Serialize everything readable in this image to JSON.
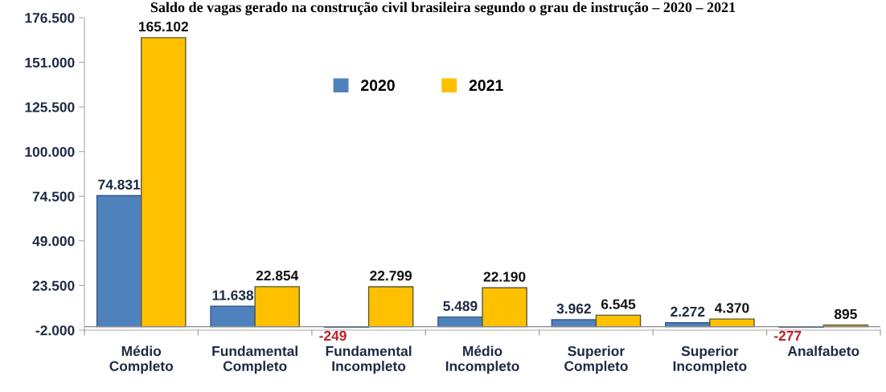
{
  "chart_data": {
    "type": "bar",
    "title": "Saldo de vagas gerado na construção civil brasileira segundo o grau de instrução – 2020 – 2021",
    "categories": [
      "Médio\nCompleto",
      "Fundamental\nCompleto",
      "Fundamental\nIncompleto",
      "Médio\nIncompleto",
      "Superior\nCompleto",
      "Superior\nIncompleto",
      "Analfabeto"
    ],
    "series": [
      {
        "name": "2020",
        "color": "#4f81bd",
        "values": [
          74831,
          11638,
          -249,
          5489,
          3962,
          2272,
          -277
        ],
        "value_labels": [
          "74.831",
          "11.638",
          "-249",
          "5.489",
          "3.962",
          "2.272",
          "-277"
        ]
      },
      {
        "name": "2021",
        "color": "#ffc000",
        "values": [
          165102,
          22854,
          22799,
          22190,
          6545,
          4370,
          895
        ],
        "value_labels": [
          "165.102",
          "22.854",
          "22.799",
          "22.190",
          "6.545",
          "4.370",
          "895"
        ]
      }
    ],
    "ylim": [
      -2000,
      176500
    ],
    "yticks": [
      {
        "value": -2000,
        "label": "-2.000"
      },
      {
        "value": 23500,
        "label": "23.500"
      },
      {
        "value": 49000,
        "label": "49.000"
      },
      {
        "value": 74500,
        "label": "74.500"
      },
      {
        "value": 100000,
        "label": "100.000"
      },
      {
        "value": 125500,
        "label": "125.500"
      },
      {
        "value": 151000,
        "label": "151.000"
      },
      {
        "value": 176500,
        "label": "176.500"
      }
    ],
    "grid": false,
    "legend": "top"
  }
}
